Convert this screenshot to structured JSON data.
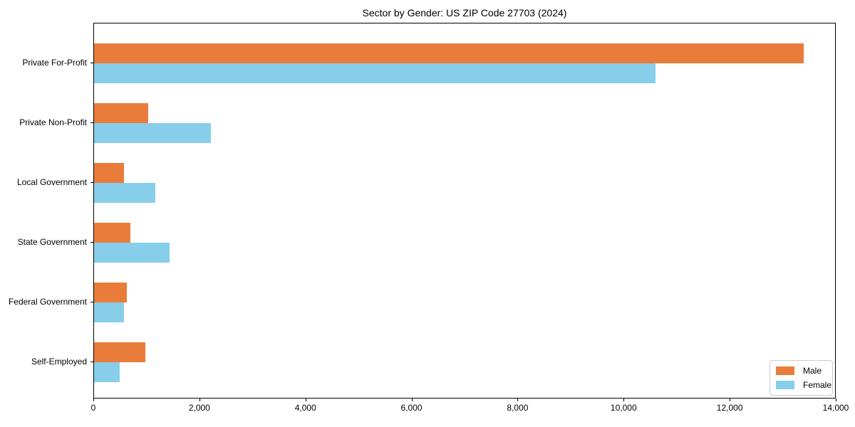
{
  "chart_data": {
    "type": "bar",
    "orientation": "horizontal",
    "title": "Sector by Gender: US ZIP Code 27703 (2024)",
    "categories": [
      "Private For-Profit",
      "Private Non-Profit",
      "Local Government",
      "State Government",
      "Federal Government",
      "Self-Employed"
    ],
    "series": [
      {
        "name": "Male",
        "color": "#E97C3B",
        "values": [
          13380,
          1020,
          560,
          690,
          615,
          970
        ]
      },
      {
        "name": "Female",
        "color": "#87CEEB",
        "values": [
          10590,
          2210,
          1150,
          1430,
          560,
          480
        ]
      }
    ],
    "xlabel": "",
    "ylabel": "",
    "xlim": [
      0,
      14000
    ],
    "x_ticks": [
      0,
      2000,
      4000,
      6000,
      8000,
      10000,
      12000,
      14000
    ],
    "x_tick_labels": [
      "0",
      "2,000",
      "4,000",
      "6,000",
      "8,000",
      "10,000",
      "12,000",
      "14,000"
    ],
    "grid": false,
    "legend": {
      "position": "lower right"
    },
    "colors": {
      "axis": "#000000",
      "legend_border": "#cccccc",
      "background": "#ffffff"
    }
  }
}
